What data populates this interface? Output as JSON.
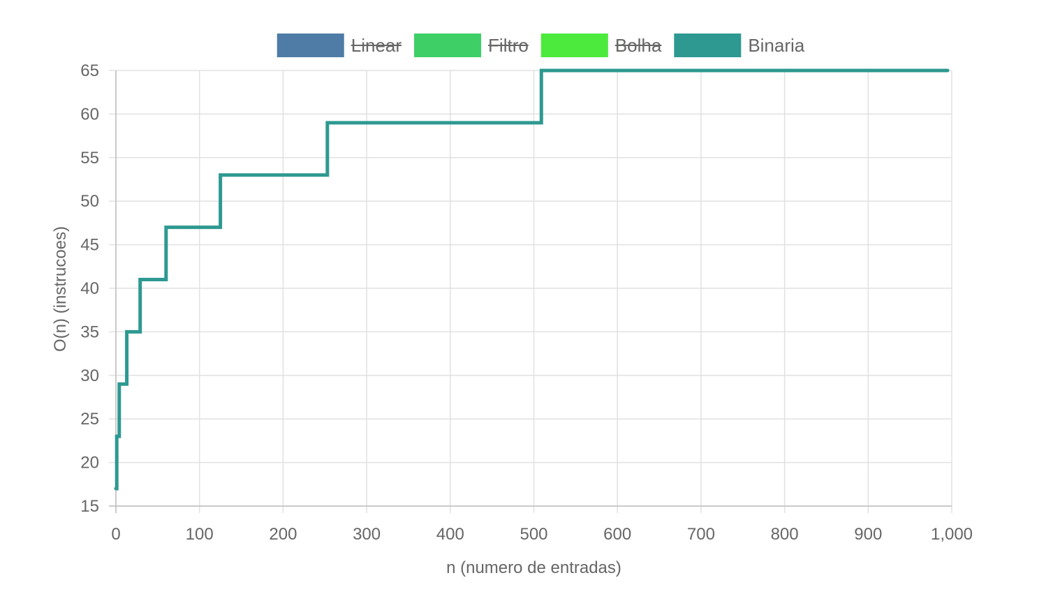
{
  "chart_data": {
    "type": "line",
    "xlabel": "n (numero de entradas)",
    "ylabel": "O(n) (instrucoes)",
    "xlim": [
      0,
      1000
    ],
    "ylim": [
      15,
      65
    ],
    "x_ticks": [
      0,
      100,
      200,
      300,
      400,
      500,
      600,
      700,
      800,
      900,
      1000
    ],
    "x_tick_labels": [
      "0",
      "100",
      "200",
      "300",
      "400",
      "500",
      "600",
      "700",
      "800",
      "900",
      "1,000"
    ],
    "y_ticks": [
      15,
      20,
      25,
      30,
      35,
      40,
      45,
      50,
      55,
      60,
      65
    ],
    "y_tick_labels": [
      "15",
      "20",
      "25",
      "30",
      "35",
      "40",
      "45",
      "50",
      "55",
      "60",
      "65"
    ],
    "grid": true,
    "legend_position": "top-center",
    "legend": [
      {
        "name": "Linear",
        "color": "#4e7ca6",
        "hidden": true
      },
      {
        "name": "Filtro",
        "color": "#3ecf66",
        "hidden": true
      },
      {
        "name": "Bolha",
        "color": "#4cea3c",
        "hidden": true
      },
      {
        "name": "Binaria",
        "color": "#2e9991",
        "hidden": false
      }
    ],
    "series": [
      {
        "name": "Binaria",
        "color": "#2e9991",
        "step": "after",
        "points": [
          {
            "x": 0,
            "y": 17
          },
          {
            "x": 1,
            "y": 23
          },
          {
            "x": 4,
            "y": 29
          },
          {
            "x": 13,
            "y": 35
          },
          {
            "x": 29,
            "y": 41
          },
          {
            "x": 60,
            "y": 47
          },
          {
            "x": 125,
            "y": 53
          },
          {
            "x": 253,
            "y": 59
          },
          {
            "x": 509,
            "y": 65
          },
          {
            "x": 995,
            "y": 65
          }
        ]
      }
    ]
  }
}
